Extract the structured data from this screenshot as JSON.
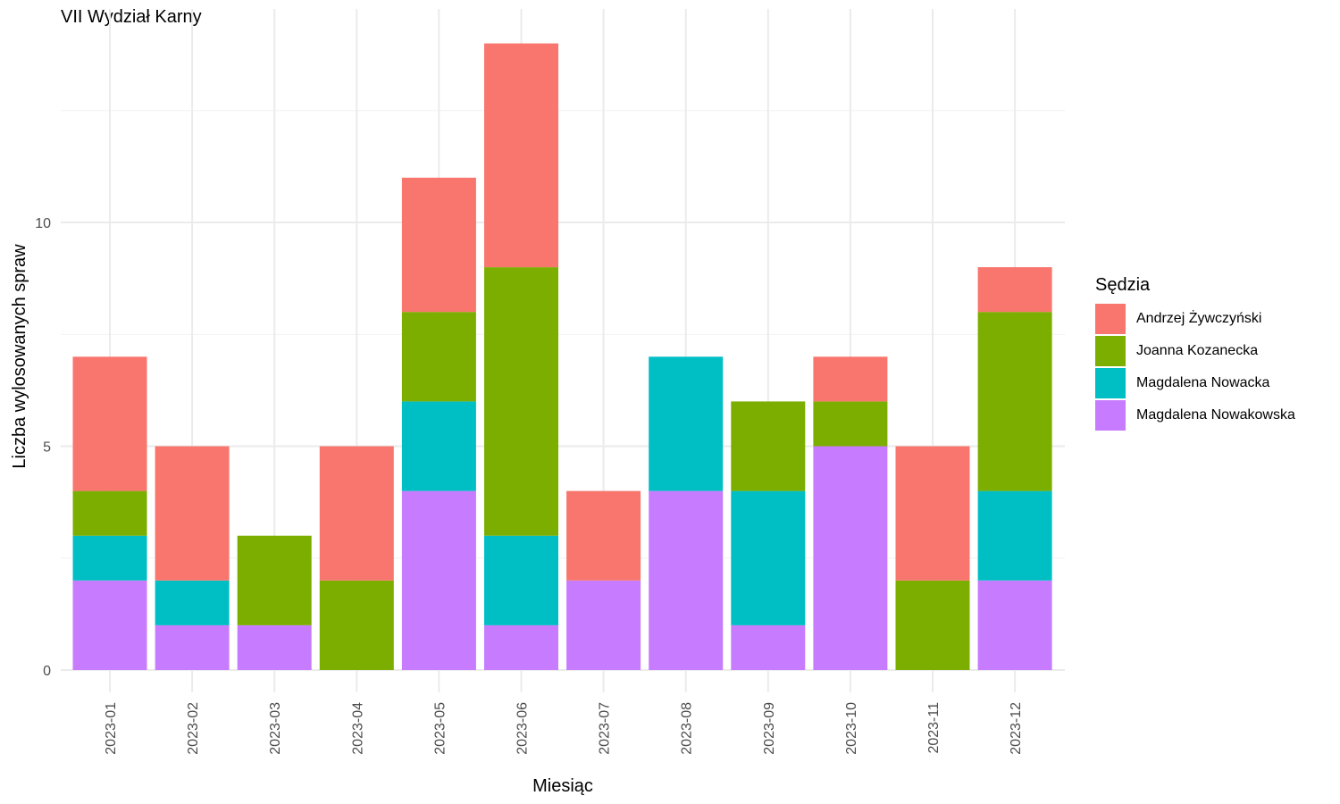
{
  "chart_data": {
    "type": "bar",
    "stacked": true,
    "title": "VII Wydział Karny",
    "xlabel": "Miesiąc",
    "ylabel": "Liczba wylosowanych spraw",
    "ylim": [
      0,
      14
    ],
    "yticks": [
      0,
      5,
      10
    ],
    "grid": true,
    "legend_title": "Sędzia",
    "legend_position": "right",
    "categories": [
      "2023-01",
      "2023-02",
      "2023-03",
      "2023-04",
      "2023-05",
      "2023-06",
      "2023-07",
      "2023-08",
      "2023-09",
      "2023-10",
      "2023-11",
      "2023-12"
    ],
    "series": [
      {
        "name": "Andrzej Żywczyński",
        "color": "#F8766D",
        "values": [
          3,
          3,
          0,
          3,
          3,
          5,
          2,
          0,
          0,
          1,
          3,
          1
        ]
      },
      {
        "name": "Joanna Kozanecka",
        "color": "#7CAE00",
        "values": [
          1,
          0,
          2,
          2,
          2,
          6,
          0,
          0,
          2,
          1,
          2,
          4
        ]
      },
      {
        "name": "Magdalena Nowacka",
        "color": "#00BFC4",
        "values": [
          1,
          1,
          0,
          0,
          2,
          2,
          0,
          3,
          3,
          0,
          0,
          2
        ]
      },
      {
        "name": "Magdalena Nowakowska",
        "color": "#C77CFF",
        "values": [
          2,
          1,
          1,
          0,
          4,
          1,
          2,
          4,
          1,
          5,
          0,
          2
        ]
      }
    ]
  }
}
